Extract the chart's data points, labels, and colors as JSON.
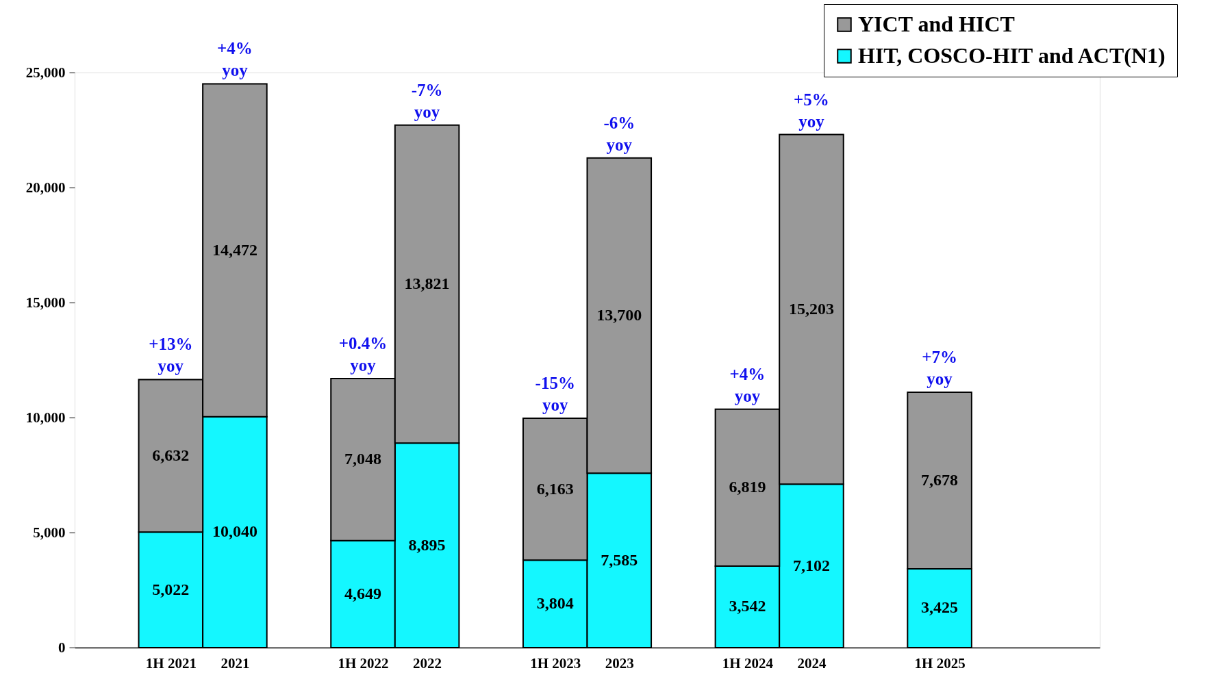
{
  "chart_data": {
    "type": "bar",
    "stacked": true,
    "legend": "top right",
    "grid": false,
    "categories": [
      "1H 2021",
      "2021",
      "1H 2022",
      "2022",
      "1H 2023",
      "2023",
      "1H 2024",
      "2024",
      "1H 2025"
    ],
    "series": [
      {
        "name": "HIT, COSCO-HIT and ACT(N1)",
        "color": "#14f7ff",
        "values": [
          5022,
          10040,
          4649,
          8895,
          3804,
          7585,
          3542,
          7102,
          3425
        ],
        "value_labels": [
          "5,022",
          "10,040",
          "4,649",
          "8,895",
          "3,804",
          "7,585",
          "3,542",
          "7,102",
          "3,425"
        ]
      },
      {
        "name": "YICT and HICT",
        "color": "#999999",
        "values": [
          6632,
          14472,
          7048,
          13821,
          6163,
          13700,
          6819,
          15203,
          7678
        ],
        "value_labels": [
          "6,632",
          "14,472",
          "7,048",
          "13,821",
          "6,163",
          "13,700",
          "6,819",
          "15,203",
          "7,678"
        ]
      }
    ],
    "ylim": [
      0,
      25000
    ],
    "yticks": [
      0,
      {
        "value": 5000,
        "label": "5,000"
      },
      {
        "value": 10000,
        "label": "10,000"
      },
      {
        "value": 15000,
        "label": "15,000"
      },
      {
        "value": 20000,
        "label": "20,000"
      },
      {
        "value": 25000,
        "label": "25,000"
      }
    ],
    "annotations": [
      {
        "text": "+13% yoy",
        "x": "1H 2021",
        "y": 11654
      },
      {
        "text": "+4% yoy",
        "x": "2021",
        "y": 24512
      },
      {
        "text": "+0.4% yoy",
        "x": "1H 2022",
        "y": 11697
      },
      {
        "text": "-7% yoy",
        "x": "2022",
        "y": 22716
      },
      {
        "text": "-15% yoy",
        "x": "1H 2023",
        "y": 9967
      },
      {
        "text": "-6% yoy",
        "x": "2023",
        "y": 21285
      },
      {
        "text": "+4% yoy",
        "x": "1H 2024",
        "y": 10361
      },
      {
        "text": "+5% yoy",
        "x": "2024",
        "y": 22305
      },
      {
        "text": "+7% yoy",
        "x": "1H 2025",
        "y": 11103
      }
    ]
  }
}
